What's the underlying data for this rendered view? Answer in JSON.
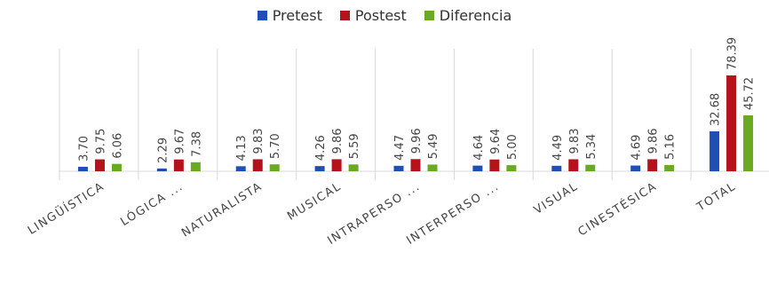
{
  "chart_data": {
    "type": "bar",
    "categories": [
      "LINGÜÍSTICA",
      "LÓGICA ...",
      "NATURALISTA",
      "MUSICAL",
      "INTRAPERSO ...",
      "INTERPERSO ...",
      "VISUAL",
      "CINESTÉSICA",
      "TOTAL"
    ],
    "series": [
      {
        "name": "Pretest",
        "color": "#1f4fb5",
        "values": [
          3.7,
          2.29,
          4.13,
          4.26,
          4.47,
          4.64,
          4.49,
          4.69,
          32.68
        ],
        "labels": [
          "3.70",
          "2.29",
          "4.13",
          "4.26",
          "4.47",
          "4.64",
          "4.49",
          "4.69",
          "32.68"
        ]
      },
      {
        "name": "Postest",
        "color": "#b5121b",
        "values": [
          9.75,
          9.67,
          9.83,
          9.86,
          9.96,
          9.64,
          9.83,
          9.86,
          78.39
        ],
        "labels": [
          "9.75",
          "9.67",
          "9.83",
          "9.86",
          "9.96",
          "9.64",
          "9.83",
          "9.86",
          "78.39"
        ]
      },
      {
        "name": "Diferencia",
        "color": "#6aaa22",
        "values": [
          6.06,
          7.38,
          5.7,
          5.59,
          5.49,
          5.0,
          5.34,
          5.16,
          45.72
        ],
        "labels": [
          "6.06",
          "7.38",
          "5.70",
          "5.59",
          "5.49",
          "5.00",
          "5.34",
          "5.16",
          "45.72"
        ]
      }
    ],
    "title": "",
    "xlabel": "",
    "ylabel": "",
    "ylim": [
      0,
      78.39
    ],
    "legend_position": "top-center",
    "grid": false
  }
}
